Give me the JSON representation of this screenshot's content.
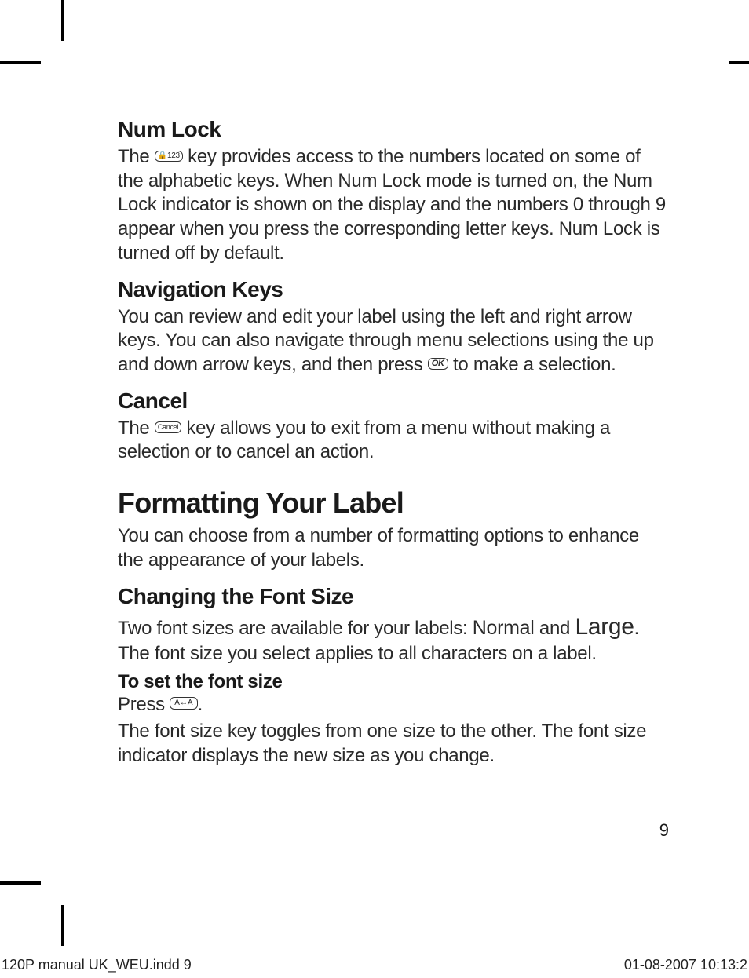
{
  "sections": {
    "numlock": {
      "title": "Num Lock",
      "p1a": "The ",
      "p1b": " key provides access to the numbers located on some of the alphabetic keys. When Num Lock mode is turned on, the Num Lock indicator is shown on the display and the numbers 0 through 9 appear when you press the corresponding letter keys. Num Lock is turned off by default.",
      "key_label": "🔒123"
    },
    "nav": {
      "title": "Navigation Keys",
      "p1a": "You can review and edit your label using the left and right arrow keys. You can also navigate through menu selections using the up and down arrow keys, and then press ",
      "p1b": " to make a selection.",
      "key_label": "OK"
    },
    "cancel": {
      "title": "Cancel",
      "p1a": "The ",
      "p1b": " key allows you to exit from a menu without making a selection or to cancel an action.",
      "key_label": "Cancel"
    },
    "format": {
      "title": "Formatting Your Label",
      "p1": "You can choose from a number of formatting options to enhance the appearance of your labels."
    },
    "fontsize": {
      "title": "Changing the Font Size",
      "p1a": "Two font sizes are available for your labels: ",
      "normal": "Normal",
      "p1b": " and ",
      "large": "Large",
      "p1c": ". The font size you select applies to all characters on a label.",
      "sub": "To set the font size",
      "p2a": "Press ",
      "p2b": ".",
      "key_label": "A↔A",
      "p3": "The font size key toggles from one size to the other. The font size indicator displays the new size as you change."
    }
  },
  "page_number": "9",
  "footer": {
    "left": "120P manual UK_WEU.indd   9",
    "right": "01-08-2007   10:13:2"
  }
}
